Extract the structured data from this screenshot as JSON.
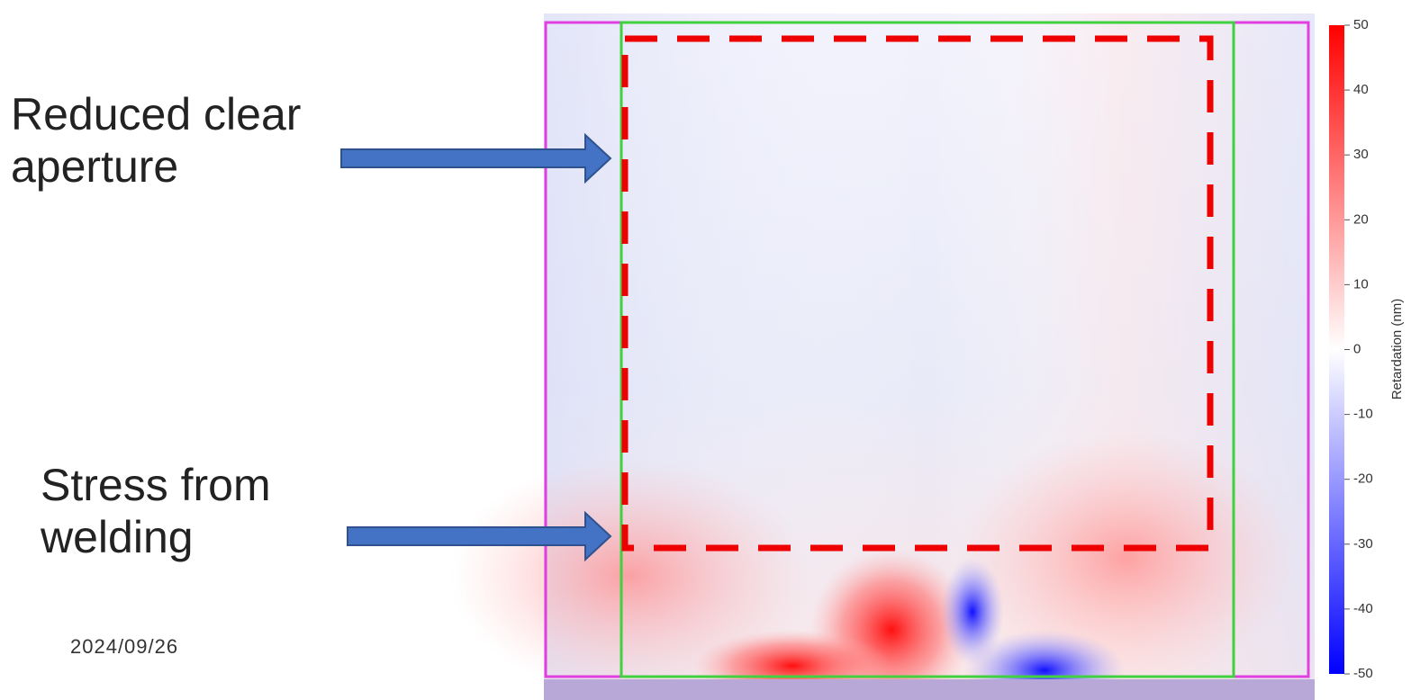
{
  "annotations": [
    {
      "label": "Reduced clear aperture"
    },
    {
      "label": "Stress from welding"
    }
  ],
  "date": "2024/09/26",
  "colorbar": {
    "label": "Retardation (nm)",
    "lim": [
      -50,
      50
    ],
    "ticks": [
      50,
      40,
      30,
      20,
      10,
      0,
      -10,
      -20,
      -30,
      -40,
      -50
    ],
    "colors": [
      "#0000ff",
      "#ffffff",
      "#ff0000"
    ]
  }
}
